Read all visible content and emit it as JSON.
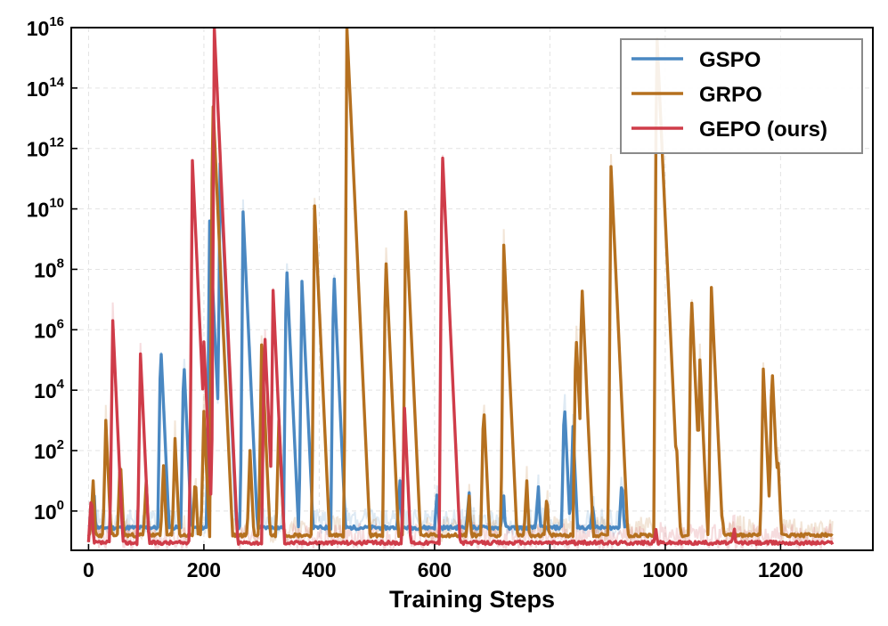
{
  "chart_data": {
    "type": "line",
    "title": "",
    "xlabel": "Training Steps",
    "ylabel": "",
    "yscale": "log",
    "xlim": [
      -30,
      1360
    ],
    "ylim_log10": [
      -1.3,
      16
    ],
    "xticks": [
      0,
      200,
      400,
      600,
      800,
      1000,
      1200
    ],
    "xtick_labels": [
      "0",
      "200",
      "400",
      "600",
      "800",
      "1000",
      "1200"
    ],
    "yticks_log10": [
      0,
      2,
      4,
      6,
      8,
      10,
      12,
      14,
      16
    ],
    "ytick_base": "10",
    "ytick_exponents": [
      "0",
      "2",
      "4",
      "6",
      "8",
      "10",
      "12",
      "14",
      "16"
    ],
    "grid": true,
    "legend_position": "top-right",
    "series": [
      {
        "name": "GSPO",
        "color": "#4a88c2",
        "start": 0,
        "end": 930,
        "baseline_log10": -0.55,
        "peaks": [
          [
            10,
            0.5
          ],
          [
            125,
            5.6
          ],
          [
            165,
            5.1
          ],
          [
            210,
            9.6
          ],
          [
            228,
            11.5
          ],
          [
            268,
            9.9
          ],
          [
            343,
            8.3
          ],
          [
            370,
            7.6
          ],
          [
            425,
            8.1
          ],
          [
            540,
            1.0
          ],
          [
            605,
            0.8
          ],
          [
            660,
            0.6
          ],
          [
            720,
            0.5
          ],
          [
            780,
            0.8
          ],
          [
            825,
            3.7
          ],
          [
            840,
            2.8
          ],
          [
            875,
            0.3
          ],
          [
            925,
            1.1
          ]
        ]
      },
      {
        "name": "GRPO",
        "color": "#b5701f",
        "start": 0,
        "end": 1290,
        "baseline_log10": -0.8,
        "peaks": [
          [
            8,
            1.0
          ],
          [
            30,
            3.0
          ],
          [
            55,
            1.8
          ],
          [
            100,
            1.0
          ],
          [
            130,
            1.5
          ],
          [
            150,
            2.4
          ],
          [
            185,
            1.2
          ],
          [
            200,
            3.3
          ],
          [
            215,
            13.8
          ],
          [
            230,
            3.5
          ],
          [
            280,
            2.0
          ],
          [
            300,
            5.5
          ],
          [
            330,
            3.0
          ],
          [
            392,
            10.1
          ],
          [
            448,
            16.0
          ],
          [
            515,
            8.6
          ],
          [
            550,
            9.9
          ],
          [
            660,
            0.5
          ],
          [
            685,
            3.6
          ],
          [
            720,
            8.8
          ],
          [
            760,
            1.0
          ],
          [
            795,
            0.6
          ],
          [
            845,
            6.0
          ],
          [
            855,
            7.7
          ],
          [
            906,
            11.4
          ],
          [
            985,
            16.0
          ],
          [
            1005,
            3.5
          ],
          [
            1020,
            2.0
          ],
          [
            1045,
            7.3
          ],
          [
            1060,
            5.0
          ],
          [
            1080,
            7.4
          ],
          [
            1100,
            -0.4
          ],
          [
            1170,
            4.7
          ],
          [
            1185,
            4.9
          ],
          [
            1195,
            2.0
          ]
        ]
      },
      {
        "name": "GEPO (ours)",
        "color": "#cf3c49",
        "start": 0,
        "end": 1290,
        "baseline_log10": -1.05,
        "peaks": [
          [
            5,
            0.6
          ],
          [
            42,
            6.3
          ],
          [
            90,
            5.2
          ],
          [
            180,
            11.6
          ],
          [
            200,
            5.6
          ],
          [
            218,
            16.0
          ],
          [
            305,
            6.1
          ],
          [
            320,
            7.3
          ],
          [
            548,
            3.4
          ],
          [
            613,
            12.1
          ],
          [
            985,
            -0.5
          ],
          [
            1120,
            -0.6
          ]
        ]
      }
    ]
  }
}
